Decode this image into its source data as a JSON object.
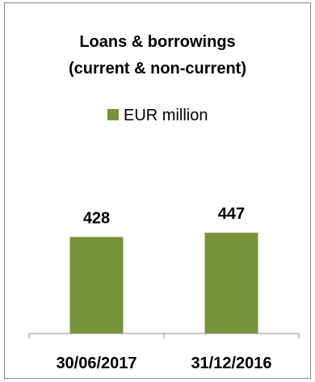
{
  "chart_data": {
    "type": "bar",
    "title": "Loans & borrowings",
    "subtitle": "(current & non-current)",
    "categories": [
      "30/06/2017",
      "31/12/2016"
    ],
    "series": [
      {
        "name": "EUR million",
        "values": [
          428,
          447
        ],
        "color": "#77933c"
      }
    ],
    "data_labels": [
      "428",
      "447"
    ],
    "legend_placement": "top",
    "grid": false,
    "ylim": [
      0,
      1250
    ]
  }
}
